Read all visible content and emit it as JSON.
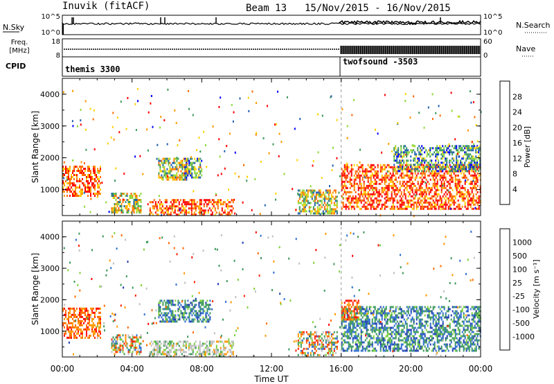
{
  "header": {
    "station": "Inuvik (fitACF)",
    "beam": "Beam 13",
    "date_range": "15/Nov/2015 - 16/Nov/2015"
  },
  "strip_noise": {
    "left_label": "N.Sky",
    "left_ticks": [
      "10^5",
      "10^0"
    ],
    "right_label": "N.Search",
    "right_ticks": [
      "10^5",
      "10^0"
    ]
  },
  "strip_freq": {
    "left_label_1": "Freq.",
    "left_label_2": "[MHz]",
    "left_ticks": [
      "18",
      "8"
    ],
    "right_label": "Nave",
    "right_ticks": [
      "60",
      "0"
    ]
  },
  "strip_cpid": {
    "label": "CPID",
    "modes": [
      {
        "name": "themis 3300",
        "start_hour": 0
      },
      {
        "name": "twofsound -3503",
        "start_hour": 16
      }
    ]
  },
  "chart_data": [
    {
      "type": "heatmap",
      "panel": "power",
      "ylabel": "Slant Range [km]",
      "y_ticks": [
        1000,
        2000,
        3000,
        4000
      ],
      "ylim": [
        180,
        4500
      ],
      "x_ticks": [
        "00:00",
        "04:00",
        "08:00",
        "12:00",
        "16:00",
        "20:00",
        "00:00"
      ],
      "xlim_hours": [
        0,
        24
      ],
      "colorbar": {
        "label": "Power [dB]",
        "tick_labels": [
          "28",
          "24",
          "20",
          "16",
          "12",
          "8",
          "4"
        ],
        "colors": [
          "#ff0000",
          "#ff6a00",
          "#ff9900",
          "#ffd200",
          "#8fd93a",
          "#3c9a5a",
          "#2060b0",
          "#0000ff"
        ]
      },
      "regions": [
        {
          "t": [
            0,
            2.2
          ],
          "r": [
            800,
            1750
          ],
          "level": "high"
        },
        {
          "t": [
            2.8,
            4.5
          ],
          "r": [
            250,
            900
          ],
          "level": "mid"
        },
        {
          "t": [
            5.0,
            9.8
          ],
          "r": [
            220,
            700
          ],
          "level": "high"
        },
        {
          "t": [
            5.5,
            7.2
          ],
          "r": [
            1300,
            2000
          ],
          "level": "mid"
        },
        {
          "t": [
            7.0,
            8.0
          ],
          "r": [
            1400,
            2000
          ],
          "level": "low"
        },
        {
          "t": [
            13.5,
            15.8
          ],
          "r": [
            250,
            1000
          ],
          "level": "mid"
        },
        {
          "t": [
            16.0,
            24.0
          ],
          "r": [
            400,
            1800
          ],
          "level": "high"
        },
        {
          "t": [
            19.0,
            24.0
          ],
          "r": [
            1600,
            2400
          ],
          "level": "low"
        }
      ]
    },
    {
      "type": "heatmap",
      "panel": "velocity",
      "ylabel": "Slant Range [km]",
      "xlabel": "Time UT",
      "y_ticks": [
        1000,
        2000,
        3000,
        4000
      ],
      "ylim": [
        180,
        4500
      ],
      "x_ticks": [
        "00:00",
        "04:00",
        "08:00",
        "12:00",
        "16:00",
        "20:00",
        "00:00"
      ],
      "xlim_hours": [
        0,
        24
      ],
      "colorbar": {
        "label": "Velocity [m s⁻¹]",
        "tick_labels": [
          "1000",
          "500",
          "100",
          "25",
          "-25",
          "-100",
          "-500",
          "-1000"
        ],
        "colors": [
          "#1f3ab0",
          "#2f6fcf",
          "#3c9a5a",
          "#7dd13a",
          "#c0c0c0",
          "#ff9900",
          "#ff6a00",
          "#ff2000",
          "#ff0000"
        ]
      },
      "regions": [
        {
          "t": [
            0,
            2.2
          ],
          "r": [
            800,
            1750
          ],
          "level": "neg"
        },
        {
          "t": [
            2.8,
            4.5
          ],
          "r": [
            250,
            900
          ],
          "level": "mix"
        },
        {
          "t": [
            5.0,
            9.8
          ],
          "r": [
            220,
            700
          ],
          "level": "zero"
        },
        {
          "t": [
            5.5,
            8.5
          ],
          "r": [
            1300,
            2000
          ],
          "level": "pos"
        },
        {
          "t": [
            13.5,
            15.8
          ],
          "r": [
            250,
            1000
          ],
          "level": "mix"
        },
        {
          "t": [
            16.0,
            24.0
          ],
          "r": [
            400,
            1800
          ],
          "level": "pos"
        },
        {
          "t": [
            16.0,
            17.0
          ],
          "r": [
            1400,
            2000
          ],
          "level": "neg"
        }
      ]
    }
  ]
}
